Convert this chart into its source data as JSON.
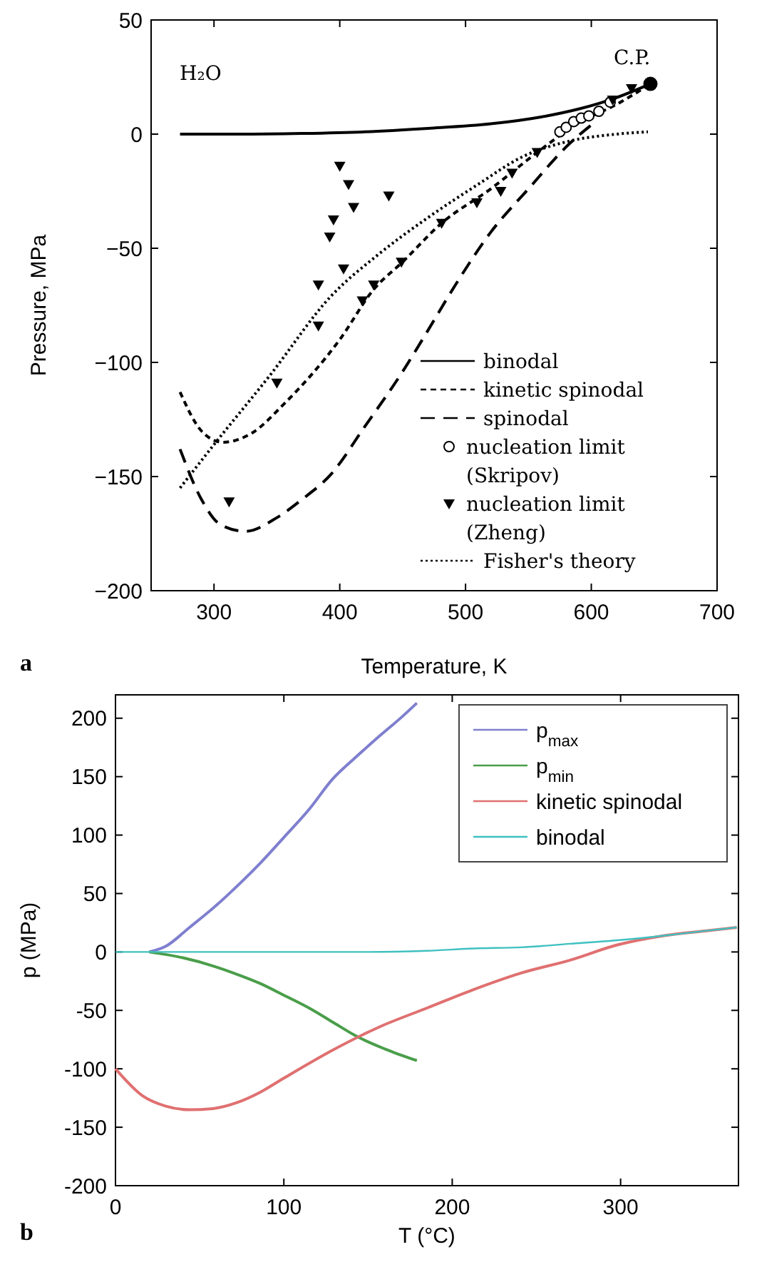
{
  "chart_data": [
    {
      "type": "line",
      "xlabel": "Temperature, K",
      "ylabel": "Pressure, MPa",
      "xlim": [
        250,
        700
      ],
      "ylim": [
        -200,
        50
      ],
      "xticks": [
        300,
        400,
        500,
        600,
        700
      ],
      "yticks": [
        {
          "value": -200,
          "label": "−200"
        },
        {
          "value": -150,
          "label": "−150"
        },
        {
          "value": -100,
          "label": "−100"
        },
        {
          "value": -50,
          "label": "−50"
        },
        0,
        50
      ],
      "grid": false,
      "legend": "bottom right",
      "annotations": [
        "H₂O",
        {
          "text": "C.P.",
          "x": 647,
          "y": 22
        },
        "a"
      ],
      "series": [
        {
          "name": "binodal",
          "color": "#000000",
          "line_style": "solid",
          "x": [
            273,
            320,
            370,
            420,
            470,
            520,
            560,
            590,
            620,
            647
          ],
          "values": [
            0,
            0,
            0.3,
            1,
            2.5,
            4.5,
            7.5,
            11,
            16,
            22
          ]
        },
        {
          "name": "kinetic spinodal",
          "color": "#000000",
          "line_style": "dashed",
          "x": [
            273,
            290,
            307,
            330,
            356,
            400,
            427,
            450,
            481,
            520,
            557,
            590,
            620,
            647
          ],
          "values": [
            -113,
            -130,
            -135,
            -131,
            -118,
            -90,
            -68,
            -56,
            -39,
            -24,
            -8,
            5,
            13,
            22
          ]
        },
        {
          "name": "spinodal",
          "color": "#000000",
          "line_style": "dashed",
          "x": [
            273,
            290,
            305,
            325,
            350,
            370,
            393,
            420,
            450,
            469,
            492,
            520,
            550,
            583,
            600
          ],
          "values": [
            -138,
            -160,
            -171,
            -174,
            -168,
            -160,
            -149,
            -128,
            -104,
            -87,
            -66,
            -43,
            -24,
            -4,
            4
          ]
        },
        {
          "name": "nucleation limit (Skripov)",
          "color": "#000000",
          "type": "scatter",
          "marker": "circle",
          "x": [
            575,
            580,
            586,
            592,
            598,
            606,
            615
          ],
          "values": [
            1,
            3,
            5.5,
            7,
            8,
            10,
            14
          ]
        },
        {
          "name": "nucleation limit (Zheng)",
          "color": "#000000",
          "type": "scatter",
          "marker": "triangle",
          "x": [
            312,
            350,
            383,
            383,
            392,
            395,
            400,
            403,
            407,
            411,
            418,
            427,
            439,
            449,
            481,
            509,
            528,
            537,
            557,
            617,
            632
          ],
          "values": [
            -161,
            -109,
            -66,
            -84,
            -45,
            -37.5,
            -14,
            -59,
            -22,
            -32,
            -73,
            -66,
            -27,
            -56,
            -39,
            -30,
            -25,
            -17,
            -8,
            15,
            20
          ]
        },
        {
          "name": "Fisher's theory",
          "color": "#000000",
          "line_style": "dotted",
          "x": [
            273,
            300,
            344,
            393,
            430,
            469,
            510,
            545,
            583,
            620,
            645
          ],
          "values": [
            -155,
            -136,
            -106,
            -71,
            -53,
            -37,
            -22,
            -10,
            -3,
            0,
            1
          ]
        },
        {
          "color": "#000000",
          "type": "scatter",
          "marker": "circle",
          "x": [
            647
          ],
          "values": [
            22
          ]
        }
      ]
    },
    {
      "type": "line",
      "xlabel": "T (°C)",
      "ylabel": "p (MPa)",
      "xlim": [
        0,
        370
      ],
      "ylim": [
        -200,
        220
      ],
      "xticks": [
        0,
        100,
        200,
        300
      ],
      "yticks": [
        -200,
        -150,
        -100,
        -50,
        0,
        50,
        100,
        150,
        200
      ],
      "grid": false,
      "legend": "top right",
      "annotations": [
        "b"
      ],
      "series": [
        {
          "name": "p$_{max}$",
          "color": "#7f7fcf",
          "x": [
            20,
            30,
            44,
            60,
            72,
            86,
            100,
            115,
            129,
            143,
            157,
            170,
            179
          ],
          "values": [
            0,
            5,
            21,
            40,
            56,
            76,
            98,
            122,
            148,
            167,
            185,
            201,
            213
          ]
        },
        {
          "name": "p$_{min}$",
          "color": "#4a9e4a",
          "x": [
            20,
            40,
            58,
            72,
            86,
            100,
            115,
            129,
            143,
            160,
            179
          ],
          "values": [
            0,
            -5,
            -12,
            -19,
            -27,
            -37,
            -48,
            -60,
            -72,
            -83,
            -93
          ]
        },
        {
          "name": "kinetic spinodal",
          "color": "#e07070",
          "x": [
            0,
            16,
            30,
            44,
            58,
            72,
            86,
            100,
            129,
            157,
            185,
            213,
            241,
            270,
            298,
            326,
            350,
            369
          ],
          "values": [
            -100,
            -123,
            -132,
            -135,
            -134,
            -129,
            -120,
            -108,
            -84,
            -64,
            -48,
            -32,
            -18,
            -7,
            6,
            14,
            18,
            21
          ]
        },
        {
          "name": "binodal",
          "color": "#40c0c0",
          "x": [
            0,
            50,
            100,
            150,
            185,
            213,
            241,
            270,
            298,
            326,
            350,
            369
          ],
          "values": [
            0,
            0,
            0,
            0,
            1,
            3,
            4,
            7,
            10,
            14,
            18,
            21
          ]
        }
      ]
    }
  ]
}
